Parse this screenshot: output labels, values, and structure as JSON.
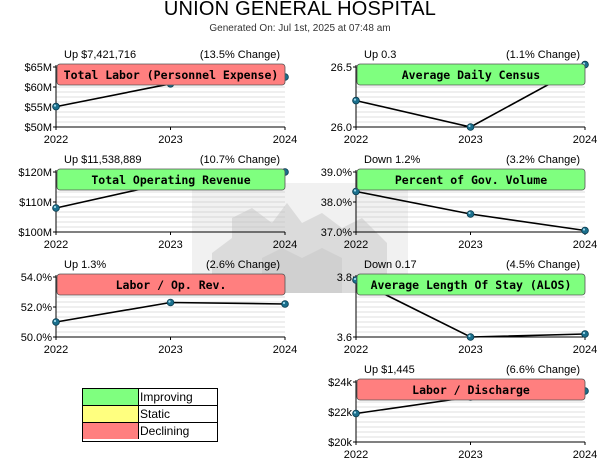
{
  "page": {
    "title": "UNION GENERAL HOSPITAL",
    "generated": "Generated On: Jul 1st, 2025 at 07:48 am"
  },
  "legend": [
    {
      "label": "Improving",
      "color": "#7fff7f"
    },
    {
      "label": "Static",
      "color": "#ffff7f"
    },
    {
      "label": "Declining",
      "color": "#ff7f7f"
    }
  ],
  "colors": {
    "improving": "#7fff7f",
    "declining": "#ff7f7f",
    "line": "#000000",
    "marker": "#1a6f8c",
    "grid": "#bfbfbf"
  },
  "chart_data": [
    {
      "id": "total-labor",
      "type": "line",
      "title": "Total Labor (Personnel Expense)",
      "status": "declining",
      "trend": "Up $7,421,716",
      "change": "(13.5% Change)",
      "x": [
        "2022",
        "2023",
        "2024"
      ],
      "values": [
        55.1,
        60.8,
        62.5
      ],
      "ylim": [
        50,
        65
      ],
      "yticks": [
        50,
        55,
        60,
        65
      ],
      "ytick_labels": [
        "$50M",
        "$55M",
        "$60M",
        "$65M"
      ],
      "grid": true
    },
    {
      "id": "average-daily-census",
      "type": "line",
      "title": "Average Daily Census",
      "status": "improving",
      "trend": "Up 0.3",
      "change": "(1.1% Change)",
      "x": [
        "2022",
        "2023",
        "2024"
      ],
      "values": [
        26.22,
        26.0,
        26.52
      ],
      "ylim": [
        26.0,
        26.5
      ],
      "yticks": [
        26.0,
        26.5
      ],
      "ytick_labels": [
        "26.0",
        "26.5"
      ],
      "grid": true
    },
    {
      "id": "total-operating-revenue",
      "type": "line",
      "title": "Total Operating Revenue",
      "status": "improving",
      "trend": "Up $11,538,889",
      "change": "(10.7% Change)",
      "x": [
        "2022",
        "2023",
        "2024"
      ],
      "values": [
        108,
        116.5,
        120
      ],
      "ylim": [
        100,
        120
      ],
      "yticks": [
        100,
        110,
        120
      ],
      "ytick_labels": [
        "$100M",
        "$110M",
        "$120M"
      ],
      "grid": true
    },
    {
      "id": "percent-gov-volume",
      "type": "line",
      "title": "Percent of Gov. Volume",
      "status": "improving",
      "trend": "Down 1.2%",
      "change": "(3.2% Change)",
      "x": [
        "2022",
        "2023",
        "2024"
      ],
      "values": [
        38.35,
        37.6,
        37.05
      ],
      "ylim": [
        37.0,
        39.0
      ],
      "yticks": [
        37.0,
        38.0,
        39.0
      ],
      "ytick_labels": [
        "37.0%",
        "38.0%",
        "39.0%"
      ],
      "grid": true
    },
    {
      "id": "labor-op-rev",
      "type": "line",
      "title": "Labor / Op. Rev.",
      "status": "declining",
      "trend": "Up 1.3%",
      "change": "(2.6% Change)",
      "x": [
        "2022",
        "2023",
        "2024"
      ],
      "values": [
        51.0,
        52.3,
        52.2
      ],
      "ylim": [
        50.0,
        54.0
      ],
      "yticks": [
        50.0,
        52.0,
        54.0
      ],
      "ytick_labels": [
        "50.0%",
        "52.0%",
        "54.0%"
      ],
      "grid": true
    },
    {
      "id": "average-length-of-stay",
      "type": "line",
      "title": "Average Length Of Stay (ALOS)",
      "status": "improving",
      "trend": "Down 0.17",
      "change": "(4.5% Change)",
      "x": [
        "2022",
        "2023",
        "2024"
      ],
      "values": [
        3.79,
        3.6,
        3.61
      ],
      "ylim": [
        3.6,
        3.8
      ],
      "yticks": [
        3.6,
        3.8
      ],
      "ytick_labels": [
        "3.6",
        "3.8"
      ],
      "grid": true
    },
    {
      "id": "labor-discharge",
      "type": "line",
      "title": "Labor / Discharge",
      "status": "declining",
      "trend": "Up $1,445",
      "change": "(6.6% Change)",
      "x": [
        "2022",
        "2023",
        "2024"
      ],
      "values": [
        21.9,
        23.0,
        23.4
      ],
      "ylim": [
        20,
        24
      ],
      "yticks": [
        20,
        22,
        24
      ],
      "ytick_labels": [
        "$20k",
        "$22k",
        "$24k"
      ],
      "grid": true
    }
  ]
}
